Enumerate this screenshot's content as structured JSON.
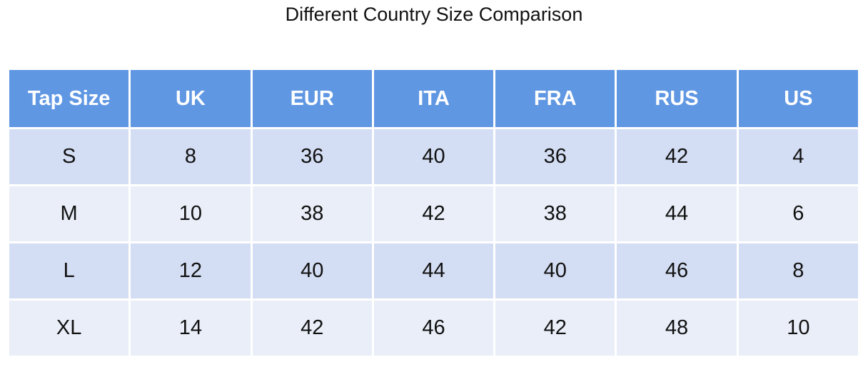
{
  "header": {
    "title": "Different Country Size Comparison"
  },
  "table": {
    "columns": [
      "Tap Size",
      "UK",
      "EUR",
      "ITA",
      "FRA",
      "RUS",
      "US"
    ],
    "rows": [
      [
        "S",
        8,
        36,
        40,
        36,
        42,
        4
      ],
      [
        "M",
        10,
        38,
        42,
        38,
        44,
        6
      ],
      [
        "L",
        12,
        40,
        44,
        40,
        46,
        8
      ],
      [
        "XL",
        14,
        42,
        46,
        42,
        48,
        10
      ]
    ]
  }
}
